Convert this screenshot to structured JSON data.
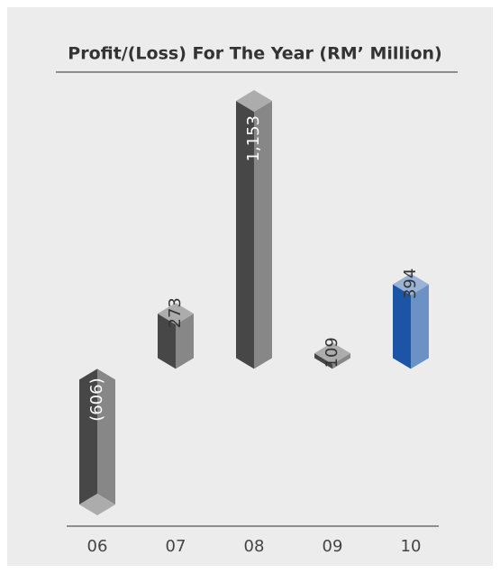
{
  "chart_data": {
    "type": "bar3d",
    "title": "Profit/(Loss) For The Year (RM’ Million)",
    "categories": [
      "06",
      "07",
      "08",
      "09",
      "10"
    ],
    "values": [
      -606,
      273,
      1153,
      109,
      394
    ],
    "value_labels": [
      "(606)",
      "273",
      "1,153",
      "109",
      "394"
    ],
    "colors": [
      "#474747",
      "#474747",
      "#474747",
      "#474747",
      "#1d55a6"
    ]
  }
}
